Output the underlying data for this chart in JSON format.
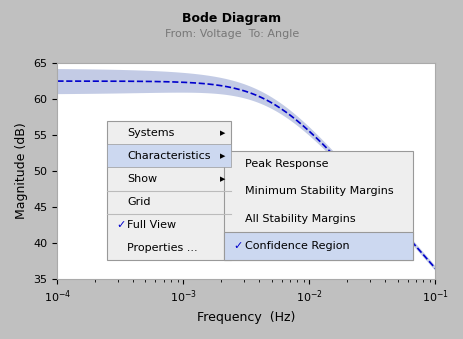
{
  "title": "Bode Diagram",
  "subtitle": "From: Voltage  To: Angle",
  "xlabel": "Frequency  (Hz)",
  "ylabel": "Magnitude (dB)",
  "ylim": [
    35,
    65
  ],
  "yticks": [
    35,
    40,
    45,
    50,
    55,
    60,
    65
  ],
  "bg_color": "#c0c0c0",
  "plot_bg": "#ffffff",
  "line_color": "#0000cc",
  "fill_color": "#8899cc",
  "fill_alpha": 0.5,
  "title_color": "#000000",
  "subtitle_color": "#777777",
  "menu1_items": [
    "Systems",
    "Characteristics",
    "Show",
    "Grid",
    "Full View",
    "Properties ..."
  ],
  "menu1_checked": [
    false,
    false,
    false,
    false,
    true,
    false
  ],
  "menu1_highlighted": [
    false,
    true,
    false,
    false,
    false,
    false
  ],
  "menu1_has_arrow": [
    true,
    true,
    true,
    false,
    false,
    false
  ],
  "menu1_separator_after": [
    2,
    3
  ],
  "menu2_items": [
    "Peak Response",
    "Minimum Stability Margins",
    "All Stability Margins",
    "Confidence Region"
  ],
  "menu2_checked": [
    false,
    false,
    false,
    true
  ],
  "menu2_highlighted": [
    false,
    false,
    false,
    true
  ],
  "menu_bg": "#eeeeee",
  "menu_highlight_bg": "#ccd8f0",
  "menu_border": "#999999",
  "check_color": "#0000cc",
  "separator_color": "#bbbbbb"
}
